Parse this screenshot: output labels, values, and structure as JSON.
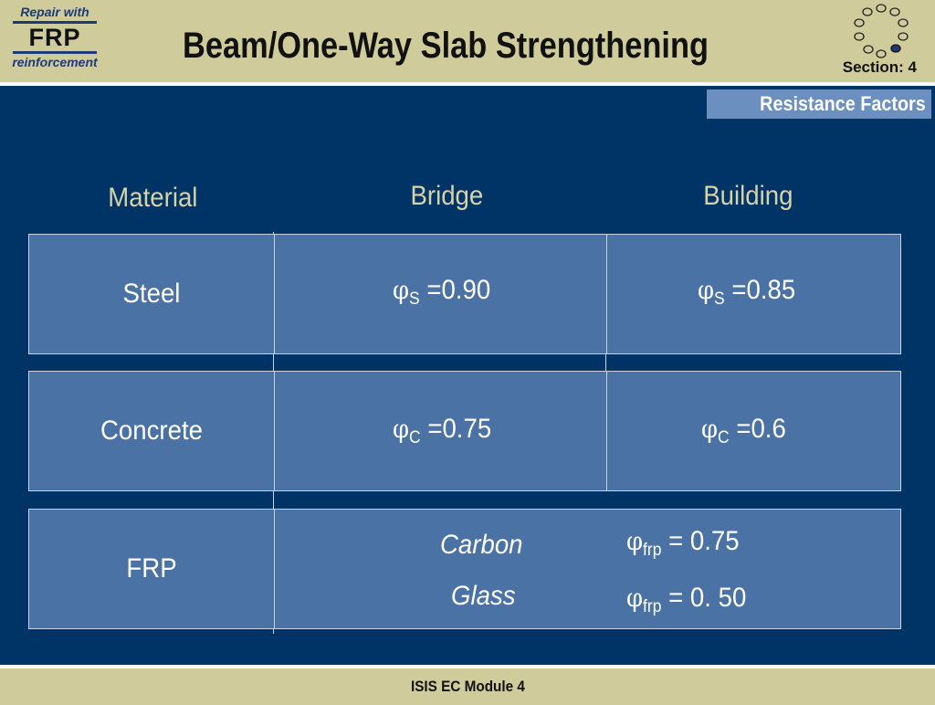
{
  "logo": {
    "top": "Repair with",
    "brand": "FRP",
    "bottom": "reinforcement"
  },
  "header": {
    "title": "Beam/One-Way Slab Strengthening",
    "section": "Section: 4"
  },
  "subtitle": "Resistance Factors",
  "table": {
    "headers": [
      "Material",
      "Bridge",
      "Building"
    ],
    "phi_symbol": "φ",
    "rows": [
      {
        "material": "Steel",
        "bridge": {
          "sub": "S",
          "value": " =0.90"
        },
        "building": {
          "sub": "S",
          "value": " =0.85"
        }
      },
      {
        "material": "Concrete",
        "bridge": {
          "sub": "C",
          "value": " =0.75"
        },
        "building": {
          "sub": "C",
          "value": " =0.6"
        }
      },
      {
        "material": "FRP",
        "fibers": [
          {
            "name": "Carbon",
            "sub": "frp",
            "value": " = 0.75"
          },
          {
            "name": "Glass",
            "sub": "frp",
            "value": " = 0. 50"
          }
        ]
      }
    ]
  },
  "footer": "ISIS EC Module 4",
  "colors": {
    "background_panel": "#003366",
    "cell": "#4a72a5",
    "header_band": "#cfcb9a",
    "heading_text": "#d7d3a6"
  }
}
